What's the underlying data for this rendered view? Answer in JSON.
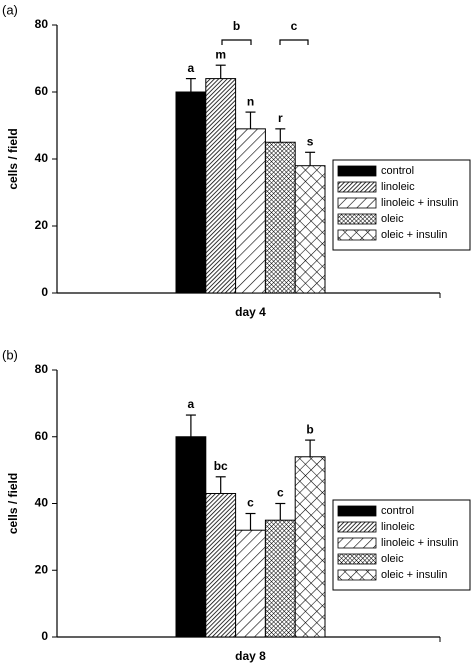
{
  "chart_data": [
    {
      "type": "bar",
      "panel_label": "(a)",
      "ylabel": "cells / field",
      "categories": [
        "day 4"
      ],
      "ylim": [
        0,
        80
      ],
      "yticks": [
        0,
        20,
        40,
        60,
        80
      ],
      "annotations": [
        "b",
        "c"
      ],
      "series": [
        {
          "name": "control",
          "color": "#000000",
          "pattern": "solid",
          "values": [
            60
          ],
          "errors": [
            4
          ],
          "letters": [
            "a"
          ]
        },
        {
          "name": "linoleic",
          "color": "#000000",
          "pattern": "dense-hatch",
          "values": [
            64
          ],
          "errors": [
            4
          ],
          "letters": [
            "m"
          ]
        },
        {
          "name": "linoleic + insulin",
          "color": "#000000",
          "pattern": "hatch",
          "values": [
            49
          ],
          "errors": [
            5
          ],
          "letters": [
            "n"
          ]
        },
        {
          "name": "oleic",
          "color": "#000000",
          "pattern": "dense-cross",
          "values": [
            45
          ],
          "errors": [
            4
          ],
          "letters": [
            "r"
          ]
        },
        {
          "name": "oleic + insulin",
          "color": "#000000",
          "pattern": "cross",
          "values": [
            38
          ],
          "errors": [
            4
          ],
          "letters": [
            "s"
          ]
        }
      ]
    },
    {
      "type": "bar",
      "panel_label": "(b)",
      "ylabel": "cells / field",
      "categories": [
        "day 8"
      ],
      "ylim": [
        0,
        80
      ],
      "yticks": [
        0,
        20,
        40,
        60,
        80
      ],
      "annotations": [],
      "series": [
        {
          "name": "control",
          "color": "#000000",
          "pattern": "solid",
          "values": [
            60
          ],
          "errors": [
            6.5
          ],
          "letters": [
            "a"
          ]
        },
        {
          "name": "linoleic",
          "color": "#000000",
          "pattern": "dense-hatch",
          "values": [
            43
          ],
          "errors": [
            5
          ],
          "letters": [
            "bc"
          ]
        },
        {
          "name": "linoleic + insulin",
          "color": "#000000",
          "pattern": "hatch",
          "values": [
            32
          ],
          "errors": [
            5
          ],
          "letters": [
            "c"
          ]
        },
        {
          "name": "oleic",
          "color": "#000000",
          "pattern": "dense-cross",
          "values": [
            35
          ],
          "errors": [
            5
          ],
          "letters": [
            "c"
          ]
        },
        {
          "name": "oleic + insulin",
          "color": "#000000",
          "pattern": "cross",
          "values": [
            54
          ],
          "errors": [
            5
          ],
          "letters": [
            "b"
          ]
        }
      ]
    }
  ]
}
